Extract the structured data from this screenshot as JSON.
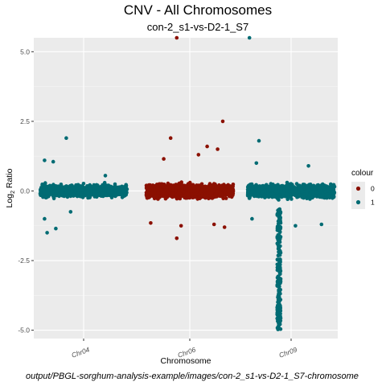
{
  "chart_data": {
    "type": "scatter",
    "title": "CNV - All Chromosomes",
    "subtitle": "con-2_s1-vs-D2-1_S7",
    "xlabel": "Chromosome",
    "ylabel": "Log",
    "ylabel_sub": "2",
    "ylabel_suffix": " Ratio",
    "x_categories": [
      "Chr04",
      "Chr06",
      "Chr09"
    ],
    "ylim": [
      -5.3,
      5.5
    ],
    "y_ticks": [
      5.0,
      2.5,
      0.0,
      -2.5,
      -5.0
    ],
    "y_tick_labels": [
      "5.0",
      "2.5",
      "0.0",
      "-2.5",
      "-5.0"
    ],
    "grid": true,
    "legend": {
      "title": "colour",
      "placement": "right",
      "entries": [
        {
          "label": "0",
          "color": "#8b1000"
        },
        {
          "label": "1",
          "color": "#006b73"
        }
      ]
    },
    "series": [
      {
        "legend_label": "1",
        "color": "#006b73",
        "category": "Chr04",
        "bulk": {
          "center": 0.0,
          "spread": 0.22,
          "count": 1100
        },
        "outliers": [
          [
            0.3,
            1.9
          ],
          [
            0.15,
            1.05
          ],
          [
            0.05,
            -1.0
          ],
          [
            0.08,
            -1.5
          ],
          [
            0.18,
            -1.35
          ],
          [
            0.35,
            -0.75
          ],
          [
            0.05,
            1.1
          ],
          [
            0.75,
            0.55
          ]
        ]
      },
      {
        "legend_label": "0",
        "color": "#8b1000",
        "category": "Chr06",
        "bulk": {
          "center": 0.0,
          "spread": 0.25,
          "count": 1500
        },
        "outliers": [
          [
            0.35,
            5.5
          ],
          [
            0.28,
            1.9
          ],
          [
            0.88,
            2.5
          ],
          [
            0.35,
            -1.7
          ],
          [
            0.7,
            1.6
          ],
          [
            0.82,
            1.5
          ],
          [
            0.6,
            1.3
          ],
          [
            0.05,
            -1.15
          ],
          [
            0.4,
            -1.25
          ],
          [
            0.9,
            -1.3
          ],
          [
            0.2,
            1.15
          ],
          [
            0.78,
            -1.2
          ]
        ]
      },
      {
        "legend_label": "1",
        "color": "#006b73",
        "category": "Chr09",
        "bulk": {
          "center": 0.0,
          "spread": 0.25,
          "count": 1300
        },
        "deletion": {
          "x_from": 0.34,
          "x_to": 0.38,
          "y_min": -5.0
        },
        "outliers": [
          [
            0.02,
            5.5
          ],
          [
            0.13,
            1.8
          ],
          [
            0.1,
            1.0
          ],
          [
            0.55,
            -1.25
          ],
          [
            0.85,
            -1.2
          ],
          [
            0.05,
            -1.0
          ],
          [
            0.7,
            0.9
          ]
        ]
      }
    ]
  },
  "caption": "output/PBGL-sorghum-analysis-example/images/con-2_s1-vs-D2-1_S7-chromosome"
}
